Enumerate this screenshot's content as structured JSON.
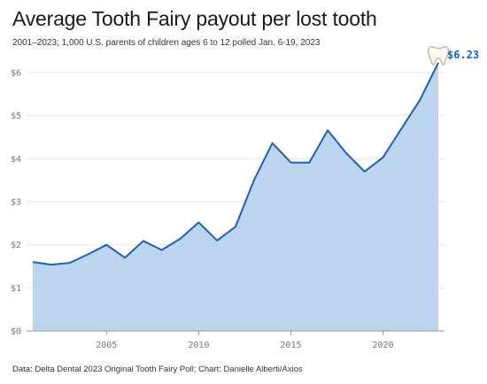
{
  "title": "Average Tooth Fairy payout per lost tooth",
  "subtitle": "2001–2023; 1,000 U.S. parents of children ages 6 to 12 polled Jan. 6-19, 2023",
  "source": "Data: Delta Dental 2023 Original Tooth Fairy Poll; Chart: Danielle Alberti/Axios",
  "colors": {
    "line": "#1f5fb5",
    "fill": "#bdd4ee",
    "grid": "#e6e6e6",
    "axis": "#999999",
    "label": "#1565c0"
  },
  "chart_data": {
    "type": "area",
    "x": [
      2001,
      2002,
      2003,
      2004,
      2005,
      2006,
      2007,
      2008,
      2009,
      2010,
      2011,
      2012,
      2013,
      2014,
      2015,
      2016,
      2017,
      2018,
      2019,
      2020,
      2021,
      2022,
      2023
    ],
    "values": [
      1.6,
      1.54,
      1.58,
      1.78,
      2.0,
      1.7,
      2.09,
      1.88,
      2.14,
      2.52,
      2.1,
      2.42,
      3.5,
      4.36,
      3.91,
      3.91,
      4.66,
      4.13,
      3.7,
      4.03,
      4.7,
      5.36,
      6.23
    ],
    "xticks": [
      2005,
      2010,
      2015,
      2020
    ],
    "yticks": [
      0,
      1,
      2,
      3,
      4,
      5,
      6
    ],
    "ytick_labels": [
      "$0",
      "$1",
      "$2",
      "$3",
      "$4",
      "$5",
      "$6"
    ],
    "xlim": [
      2001,
      2023
    ],
    "ylim": [
      0,
      6
    ],
    "grid": true,
    "end_label": "$6.23",
    "end_icon": "tooth-icon"
  }
}
